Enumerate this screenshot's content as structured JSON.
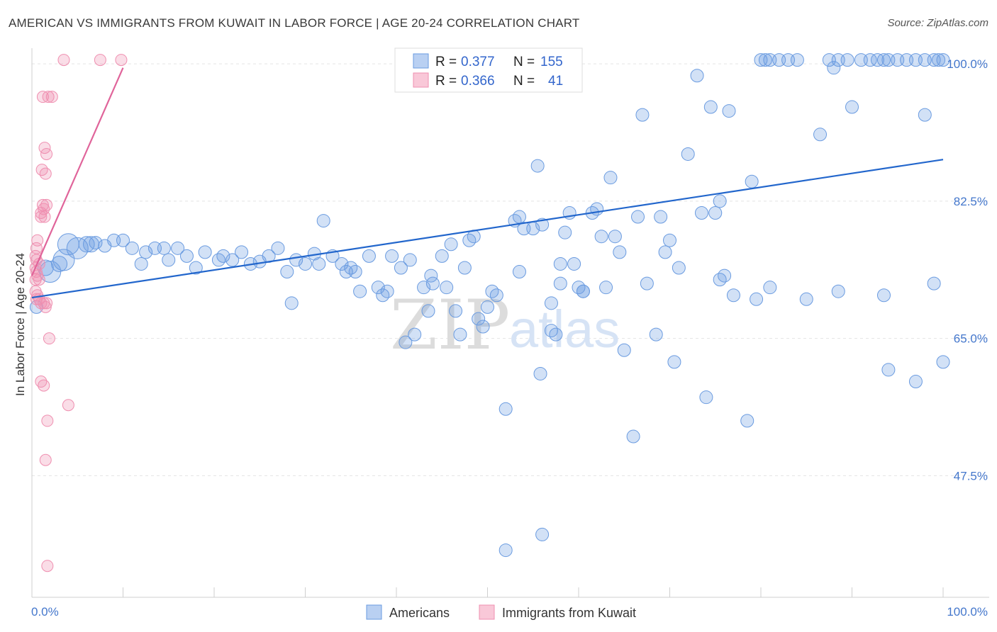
{
  "title": "AMERICAN VS IMMIGRANTS FROM KUWAIT IN LABOR FORCE | AGE 20-24 CORRELATION CHART",
  "source": "Source: ZipAtlas.com",
  "watermark": {
    "zip": "ZIP",
    "atlas": "atlas"
  },
  "colors": {
    "blue": "#6a9be0",
    "blue_line": "#2266cc",
    "pink": "#ef8fb0",
    "pink_line": "#e0649a",
    "tick": "#4477cc"
  },
  "legend": {
    "rows": [
      {
        "r_label": "R =",
        "r_value": "0.377",
        "n_label": "N =",
        "n_value": "155"
      },
      {
        "r_label": "R =",
        "r_value": "0.366",
        "n_label": "N =",
        "n_value": "41"
      }
    ]
  },
  "bottom_legend": [
    "Americans",
    "Immigrants from Kuwait"
  ],
  "chart_data": {
    "type": "scatter",
    "title": "AMERICAN VS IMMIGRANTS FROM KUWAIT IN LABOR FORCE | AGE 20-24 CORRELATION CHART",
    "xlabel": "",
    "ylabel": "In Labor Force | Age 20-24",
    "xlim": [
      0,
      100
    ],
    "ylim": [
      32,
      102
    ],
    "x_tick_labels": [
      "0.0%",
      "100.0%"
    ],
    "y_ticks": [
      47.5,
      65.0,
      82.5,
      100.0
    ],
    "y_tick_labels": [
      "47.5%",
      "65.0%",
      "82.5%",
      "100.0%"
    ],
    "grid": true,
    "legend_position": "top-center",
    "series": [
      {
        "name": "Americans",
        "r": 0.377,
        "n": 155,
        "trend": {
          "x": [
            0,
            100
          ],
          "y": [
            70.2,
            87.8
          ]
        },
        "points": [
          [
            0.5,
            69.0
          ],
          [
            2.0,
            73.5
          ],
          [
            3.5,
            75.0
          ],
          [
            4.0,
            77.0
          ],
          [
            5.0,
            76.5
          ],
          [
            6.0,
            77.0
          ],
          [
            7.0,
            77.2
          ],
          [
            8.0,
            76.8
          ],
          [
            9.0,
            77.5
          ],
          [
            10.0,
            77.5
          ],
          [
            11.0,
            76.5
          ],
          [
            12.0,
            74.5
          ],
          [
            12.5,
            76.0
          ],
          [
            13.5,
            76.5
          ],
          [
            14.5,
            76.5
          ],
          [
            15.0,
            75.0
          ],
          [
            16.0,
            76.5
          ],
          [
            17.0,
            75.5
          ],
          [
            18.0,
            74.0
          ],
          [
            19.0,
            76.0
          ],
          [
            20.5,
            75.0
          ],
          [
            21.0,
            75.5
          ],
          [
            22.0,
            75.0
          ],
          [
            23.0,
            76.0
          ],
          [
            24.0,
            74.5
          ],
          [
            25.0,
            74.8
          ],
          [
            26.0,
            75.5
          ],
          [
            27.0,
            76.5
          ],
          [
            28.0,
            73.5
          ],
          [
            28.5,
            69.5
          ],
          [
            29.0,
            75.0
          ],
          [
            30.0,
            74.5
          ],
          [
            31.0,
            75.8
          ],
          [
            31.5,
            74.5
          ],
          [
            32.0,
            80.0
          ],
          [
            33.0,
            75.5
          ],
          [
            34.0,
            74.5
          ],
          [
            34.5,
            73.5
          ],
          [
            35.0,
            74.0
          ],
          [
            35.5,
            73.5
          ],
          [
            36.0,
            71.0
          ],
          [
            37.0,
            75.5
          ],
          [
            38.0,
            71.5
          ],
          [
            38.5,
            70.5
          ],
          [
            39.0,
            71.0
          ],
          [
            39.5,
            75.5
          ],
          [
            40.5,
            74.0
          ],
          [
            41.0,
            64.5
          ],
          [
            41.5,
            75.0
          ],
          [
            42.0,
            65.5
          ],
          [
            43.0,
            71.5
          ],
          [
            43.5,
            68.5
          ],
          [
            43.8,
            73.0
          ],
          [
            44.0,
            72.0
          ],
          [
            45.0,
            75.5
          ],
          [
            45.5,
            71.5
          ],
          [
            46.0,
            77.0
          ],
          [
            46.5,
            68.5
          ],
          [
            47.0,
            65.5
          ],
          [
            47.5,
            74.0
          ],
          [
            48.5,
            78.0
          ],
          [
            48.0,
            77.5
          ],
          [
            49.0,
            67.5
          ],
          [
            49.5,
            66.5
          ],
          [
            50.0,
            69.0
          ],
          [
            50.5,
            71.0
          ],
          [
            51.0,
            70.5
          ],
          [
            52.0,
            56.0
          ],
          [
            53.0,
            80.0
          ],
          [
            53.5,
            80.5
          ],
          [
            54.0,
            79.0
          ],
          [
            55.0,
            79.0
          ],
          [
            55.5,
            87.0
          ],
          [
            55.8,
            60.5
          ],
          [
            56.0,
            79.5
          ],
          [
            57.0,
            69.5
          ],
          [
            57.5,
            65.5
          ],
          [
            58.0,
            72.0
          ],
          [
            58.5,
            78.5
          ],
          [
            59.0,
            81.0
          ],
          [
            59.5,
            74.5
          ],
          [
            60.0,
            71.5
          ],
          [
            60.5,
            71.0
          ],
          [
            61.5,
            81.0
          ],
          [
            62.0,
            81.5
          ],
          [
            63.0,
            71.5
          ],
          [
            63.5,
            85.5
          ],
          [
            64.0,
            78.0
          ],
          [
            64.5,
            76.0
          ],
          [
            65.0,
            63.5
          ],
          [
            66.0,
            52.5
          ],
          [
            67.0,
            93.5
          ],
          [
            67.5,
            72.0
          ],
          [
            68.5,
            65.5
          ],
          [
            69.0,
            80.5
          ],
          [
            69.5,
            76.0
          ],
          [
            70.0,
            77.5
          ],
          [
            70.5,
            62.0
          ],
          [
            71.0,
            74.0
          ],
          [
            72.0,
            88.5
          ],
          [
            73.0,
            98.5
          ],
          [
            73.5,
            81.0
          ],
          [
            74.0,
            57.5
          ],
          [
            74.5,
            94.5
          ],
          [
            75.0,
            81.0
          ],
          [
            75.5,
            82.5
          ],
          [
            76.0,
            73.0
          ],
          [
            76.5,
            94.0
          ],
          [
            77.0,
            70.5
          ],
          [
            78.5,
            54.5
          ],
          [
            79.0,
            85.0
          ],
          [
            80.0,
            100.5
          ],
          [
            80.5,
            100.5
          ],
          [
            81.0,
            100.5
          ],
          [
            82.0,
            100.5
          ],
          [
            83.0,
            100.5
          ],
          [
            84.0,
            100.5
          ],
          [
            85.0,
            70.0
          ],
          [
            86.5,
            91.0
          ],
          [
            87.5,
            100.5
          ],
          [
            88.0,
            99.5
          ],
          [
            88.5,
            100.5
          ],
          [
            89.5,
            100.5
          ],
          [
            90.0,
            94.5
          ],
          [
            91.0,
            100.5
          ],
          [
            92.0,
            100.5
          ],
          [
            92.8,
            100.5
          ],
          [
            93.5,
            100.5
          ],
          [
            94.0,
            100.5
          ],
          [
            95.0,
            100.5
          ],
          [
            96.0,
            100.5
          ],
          [
            97.0,
            100.5
          ],
          [
            98.0,
            100.5
          ],
          [
            99.0,
            100.5
          ],
          [
            99.5,
            100.5
          ],
          [
            100.0,
            100.5
          ],
          [
            94.0,
            61.0
          ],
          [
            98.0,
            93.5
          ],
          [
            97.0,
            59.5
          ],
          [
            100.0,
            62.0
          ],
          [
            52.0,
            38.0
          ],
          [
            56.0,
            40.0
          ],
          [
            60.5,
            71.0
          ],
          [
            58.0,
            74.5
          ],
          [
            53.5,
            73.5
          ],
          [
            57.0,
            66.0
          ],
          [
            75.5,
            72.5
          ],
          [
            88.5,
            71.0
          ],
          [
            99.0,
            72.0
          ],
          [
            93.5,
            70.5
          ],
          [
            81.0,
            71.5
          ],
          [
            79.5,
            70.0
          ],
          [
            66.5,
            80.5
          ],
          [
            62.5,
            78.0
          ],
          [
            1.5,
            74.0
          ],
          [
            3.0,
            74.5
          ],
          [
            6.5,
            77.0
          ]
        ]
      },
      {
        "name": "Immigrants from Kuwait",
        "r": 0.366,
        "n": 41,
        "trend": {
          "x": [
            0,
            10
          ],
          "y": [
            73.0,
            99.5
          ]
        },
        "points": [
          [
            3.5,
            100.5
          ],
          [
            7.5,
            100.5
          ],
          [
            9.8,
            100.5
          ],
          [
            1.2,
            95.8
          ],
          [
            1.8,
            95.8
          ],
          [
            2.2,
            95.8
          ],
          [
            1.4,
            89.3
          ],
          [
            1.6,
            88.5
          ],
          [
            1.1,
            86.5
          ],
          [
            1.5,
            86.0
          ],
          [
            1.2,
            82.0
          ],
          [
            1.6,
            82.0
          ],
          [
            1.3,
            81.5
          ],
          [
            1.0,
            81.0
          ],
          [
            1.4,
            80.5
          ],
          [
            1.0,
            80.5
          ],
          [
            0.6,
            77.5
          ],
          [
            0.5,
            76.5
          ],
          [
            0.4,
            75.5
          ],
          [
            0.5,
            75.0
          ],
          [
            0.8,
            74.5
          ],
          [
            0.4,
            74.0
          ],
          [
            0.5,
            73.5
          ],
          [
            0.6,
            73.0
          ],
          [
            0.4,
            72.5
          ],
          [
            0.8,
            72.5
          ],
          [
            0.4,
            71.0
          ],
          [
            0.6,
            70.5
          ],
          [
            0.5,
            70.0
          ],
          [
            0.8,
            70.0
          ],
          [
            1.0,
            69.5
          ],
          [
            1.3,
            69.5
          ],
          [
            1.6,
            69.5
          ],
          [
            1.5,
            69.0
          ],
          [
            1.9,
            65.0
          ],
          [
            1.0,
            59.5
          ],
          [
            1.3,
            59.0
          ],
          [
            4.0,
            56.5
          ],
          [
            1.7,
            54.5
          ],
          [
            1.5,
            49.5
          ],
          [
            1.7,
            36.0
          ]
        ]
      }
    ]
  }
}
